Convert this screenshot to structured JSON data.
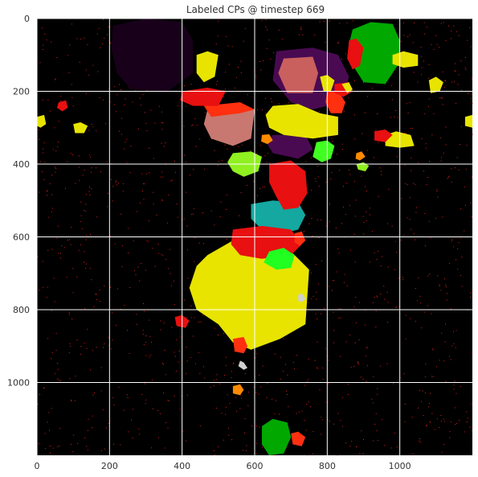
{
  "chart_data": {
    "type": "heatmap",
    "title": "Labeled CPs @ timestep 669",
    "xlabel": "",
    "ylabel": "",
    "xlim": [
      0,
      1200
    ],
    "ylim": [
      1200,
      0
    ],
    "x_ticks": [
      0,
      200,
      400,
      600,
      800,
      1000
    ],
    "y_ticks": [
      0,
      200,
      400,
      600,
      800,
      1000
    ],
    "x_tick_labels": [
      "0",
      "200",
      "400",
      "600",
      "800",
      "1000"
    ],
    "y_tick_labels": [
      "0",
      "200",
      "400",
      "600",
      "800",
      "1000"
    ],
    "grid": true,
    "background_color": "#000000",
    "noise_color": "#e8201a",
    "regions": [
      {
        "color": "#18001a",
        "points": [
          [
            210,
            20
          ],
          [
            300,
            0
          ],
          [
            400,
            10
          ],
          [
            430,
            60
          ],
          [
            430,
            150
          ],
          [
            360,
            200
          ],
          [
            260,
            195
          ],
          [
            220,
            150
          ],
          [
            205,
            80
          ]
        ]
      },
      {
        "color": "#4a0a52",
        "points": [
          [
            660,
            90
          ],
          [
            760,
            80
          ],
          [
            830,
            100
          ],
          [
            860,
            160
          ],
          [
            840,
            230
          ],
          [
            760,
            250
          ],
          [
            700,
            230
          ],
          [
            650,
            170
          ]
        ]
      },
      {
        "color": "#c9605e",
        "points": [
          [
            680,
            110
          ],
          [
            760,
            105
          ],
          [
            775,
            150
          ],
          [
            760,
            205
          ],
          [
            690,
            205
          ],
          [
            665,
            150
          ]
        ]
      },
      {
        "color": "#4a0a52",
        "points": [
          [
            650,
            320
          ],
          [
            740,
            320
          ],
          [
            760,
            360
          ],
          [
            720,
            385
          ],
          [
            650,
            370
          ],
          [
            635,
            345
          ]
        ]
      },
      {
        "color": "#c87870",
        "points": [
          [
            470,
            250
          ],
          [
            560,
            240
          ],
          [
            600,
            250
          ],
          [
            590,
            330
          ],
          [
            540,
            350
          ],
          [
            480,
            330
          ],
          [
            460,
            290
          ]
        ]
      },
      {
        "color": "#00a800",
        "points": [
          [
            870,
            30
          ],
          [
            920,
            10
          ],
          [
            980,
            15
          ],
          [
            1000,
            60
          ],
          [
            1000,
            120
          ],
          [
            960,
            180
          ],
          [
            900,
            175
          ],
          [
            865,
            120
          ],
          [
            860,
            70
          ]
        ]
      },
      {
        "color": "#e8e400",
        "points": [
          [
            650,
            240
          ],
          [
            720,
            235
          ],
          [
            780,
            260
          ],
          [
            830,
            270
          ],
          [
            830,
            320
          ],
          [
            760,
            330
          ],
          [
            680,
            320
          ],
          [
            640,
            300
          ],
          [
            630,
            265
          ]
        ]
      },
      {
        "color": "#e8e400",
        "points": [
          [
            470,
            650
          ],
          [
            540,
            610
          ],
          [
            640,
            630
          ],
          [
            700,
            640
          ],
          [
            750,
            690
          ],
          [
            740,
            840
          ],
          [
            670,
            880
          ],
          [
            590,
            910
          ],
          [
            540,
            890
          ],
          [
            500,
            840
          ],
          [
            440,
            800
          ],
          [
            420,
            740
          ],
          [
            440,
            680
          ]
        ]
      },
      {
        "color": "#14a8a0",
        "points": [
          [
            590,
            510
          ],
          [
            650,
            500
          ],
          [
            720,
            505
          ],
          [
            740,
            540
          ],
          [
            720,
            580
          ],
          [
            660,
            595
          ],
          [
            620,
            580
          ],
          [
            590,
            550
          ]
        ]
      },
      {
        "color": "#e81010",
        "points": [
          [
            540,
            580
          ],
          [
            620,
            570
          ],
          [
            700,
            580
          ],
          [
            730,
            620
          ],
          [
            700,
            650
          ],
          [
            620,
            660
          ],
          [
            560,
            650
          ],
          [
            535,
            620
          ]
        ]
      },
      {
        "color": "#20ff20",
        "points": [
          [
            640,
            640
          ],
          [
            680,
            630
          ],
          [
            710,
            650
          ],
          [
            700,
            685
          ],
          [
            660,
            690
          ],
          [
            625,
            670
          ]
        ]
      },
      {
        "color": "#e81010",
        "points": [
          [
            640,
            400
          ],
          [
            700,
            390
          ],
          [
            740,
            420
          ],
          [
            745,
            480
          ],
          [
            720,
            520
          ],
          [
            680,
            525
          ],
          [
            660,
            490
          ],
          [
            640,
            450
          ]
        ]
      },
      {
        "color": "#90f020",
        "points": [
          [
            540,
            370
          ],
          [
            590,
            365
          ],
          [
            620,
            380
          ],
          [
            610,
            420
          ],
          [
            570,
            435
          ],
          [
            540,
            420
          ],
          [
            525,
            395
          ]
        ]
      },
      {
        "color": "#40ff20",
        "points": [
          [
            770,
            340
          ],
          [
            800,
            335
          ],
          [
            820,
            350
          ],
          [
            810,
            385
          ],
          [
            785,
            395
          ],
          [
            760,
            380
          ]
        ]
      },
      {
        "color": "#e81010",
        "points": [
          [
            860,
            60
          ],
          [
            880,
            55
          ],
          [
            900,
            80
          ],
          [
            890,
            130
          ],
          [
            870,
            140
          ],
          [
            855,
            110
          ]
        ]
      },
      {
        "color": "#ff3010",
        "points": [
          [
            460,
            240
          ],
          [
            560,
            230
          ],
          [
            600,
            250
          ],
          [
            560,
            260
          ],
          [
            480,
            270
          ]
        ]
      },
      {
        "color": "#e8e400",
        "points": [
          [
            440,
            100
          ],
          [
            470,
            90
          ],
          [
            500,
            100
          ],
          [
            490,
            160
          ],
          [
            460,
            175
          ],
          [
            440,
            150
          ]
        ]
      },
      {
        "color": "#e81010",
        "points": [
          [
            400,
            200
          ],
          [
            470,
            190
          ],
          [
            520,
            200
          ],
          [
            500,
            240
          ],
          [
            430,
            240
          ],
          [
            395,
            225
          ]
        ]
      },
      {
        "color": "#e8e400",
        "points": [
          [
            1080,
            170
          ],
          [
            1100,
            160
          ],
          [
            1120,
            175
          ],
          [
            1110,
            200
          ],
          [
            1085,
            205
          ]
        ]
      },
      {
        "color": "#e8e400",
        "points": [
          [
            100,
            290
          ],
          [
            120,
            285
          ],
          [
            140,
            295
          ],
          [
            130,
            315
          ],
          [
            105,
            315
          ]
        ]
      },
      {
        "color": "#e8e400",
        "points": [
          [
            960,
            320
          ],
          [
            990,
            310
          ],
          [
            1030,
            320
          ],
          [
            1040,
            350
          ],
          [
            1000,
            355
          ],
          [
            960,
            350
          ]
        ]
      },
      {
        "color": "#e8e400",
        "points": [
          [
            980,
            100
          ],
          [
            1010,
            90
          ],
          [
            1050,
            100
          ],
          [
            1050,
            130
          ],
          [
            1010,
            135
          ],
          [
            980,
            125
          ]
        ]
      },
      {
        "color": "#e81010",
        "points": [
          [
            930,
            310
          ],
          [
            960,
            305
          ],
          [
            980,
            320
          ],
          [
            960,
            340
          ],
          [
            930,
            335
          ]
        ]
      },
      {
        "color": "#ff3010",
        "points": [
          [
            800,
            200
          ],
          [
            830,
            200
          ],
          [
            850,
            230
          ],
          [
            840,
            260
          ],
          [
            810,
            260
          ],
          [
            795,
            230
          ]
        ]
      },
      {
        "color": "#e8e400",
        "points": [
          [
            780,
            160
          ],
          [
            800,
            155
          ],
          [
            820,
            170
          ],
          [
            810,
            200
          ],
          [
            790,
            200
          ]
        ]
      },
      {
        "color": "#ff3010",
        "points": [
          [
            540,
            880
          ],
          [
            570,
            875
          ],
          [
            580,
            900
          ],
          [
            570,
            920
          ],
          [
            545,
            915
          ]
        ]
      },
      {
        "color": "#ff8a00",
        "points": [
          [
            540,
            1010
          ],
          [
            560,
            1005
          ],
          [
            570,
            1020
          ],
          [
            560,
            1035
          ],
          [
            540,
            1030
          ]
        ]
      },
      {
        "color": "#00a800",
        "points": [
          [
            620,
            1120
          ],
          [
            650,
            1100
          ],
          [
            690,
            1110
          ],
          [
            700,
            1150
          ],
          [
            680,
            1195
          ],
          [
            640,
            1200
          ],
          [
            620,
            1170
          ]
        ]
      },
      {
        "color": "#ff3010",
        "points": [
          [
            700,
            1140
          ],
          [
            720,
            1135
          ],
          [
            740,
            1150
          ],
          [
            730,
            1175
          ],
          [
            705,
            1170
          ]
        ]
      },
      {
        "color": "#e81010",
        "points": [
          [
            380,
            820
          ],
          [
            400,
            815
          ],
          [
            420,
            830
          ],
          [
            410,
            850
          ],
          [
            385,
            845
          ]
        ]
      },
      {
        "color": "#d0d0d0",
        "points": [
          [
            560,
            940
          ],
          [
            570,
            945
          ],
          [
            580,
            960
          ],
          [
            570,
            965
          ],
          [
            555,
            955
          ]
        ]
      },
      {
        "color": "#d0d0d0",
        "points": [
          [
            720,
            760
          ],
          [
            730,
            755
          ],
          [
            740,
            770
          ],
          [
            730,
            780
          ],
          [
            720,
            775
          ]
        ]
      },
      {
        "color": "#e8e400",
        "points": [
          [
            0,
            270
          ],
          [
            20,
            265
          ],
          [
            25,
            290
          ],
          [
            10,
            300
          ],
          [
            0,
            295
          ]
        ]
      },
      {
        "color": "#e8e400",
        "points": [
          [
            1180,
            270
          ],
          [
            1200,
            265
          ],
          [
            1200,
            300
          ],
          [
            1180,
            295
          ]
        ]
      },
      {
        "color": "#ff8a00",
        "points": [
          [
            880,
            370
          ],
          [
            895,
            365
          ],
          [
            905,
            380
          ],
          [
            890,
            390
          ],
          [
            878,
            385
          ]
        ]
      },
      {
        "color": "#e81010",
        "points": [
          [
            820,
            180
          ],
          [
            860,
            175
          ],
          [
            870,
            200
          ],
          [
            845,
            215
          ],
          [
            820,
            205
          ]
        ]
      },
      {
        "color": "#90f020",
        "points": [
          [
            880,
            400
          ],
          [
            900,
            395
          ],
          [
            915,
            405
          ],
          [
            905,
            420
          ],
          [
            885,
            415
          ]
        ]
      },
      {
        "color": "#e8e400",
        "points": [
          [
            840,
            180
          ],
          [
            860,
            175
          ],
          [
            870,
            195
          ],
          [
            855,
            205
          ]
        ]
      },
      {
        "color": "#ff3010",
        "points": [
          [
            710,
            590
          ],
          [
            730,
            585
          ],
          [
            740,
            610
          ],
          [
            725,
            625
          ],
          [
            710,
            615
          ]
        ]
      },
      {
        "color": "#e81010",
        "points": [
          [
            60,
            230
          ],
          [
            80,
            225
          ],
          [
            85,
            245
          ],
          [
            70,
            255
          ],
          [
            55,
            245
          ]
        ]
      },
      {
        "color": "#ff8a00",
        "points": [
          [
            620,
            320
          ],
          [
            640,
            318
          ],
          [
            650,
            335
          ],
          [
            635,
            345
          ],
          [
            618,
            338
          ]
        ]
      }
    ]
  }
}
